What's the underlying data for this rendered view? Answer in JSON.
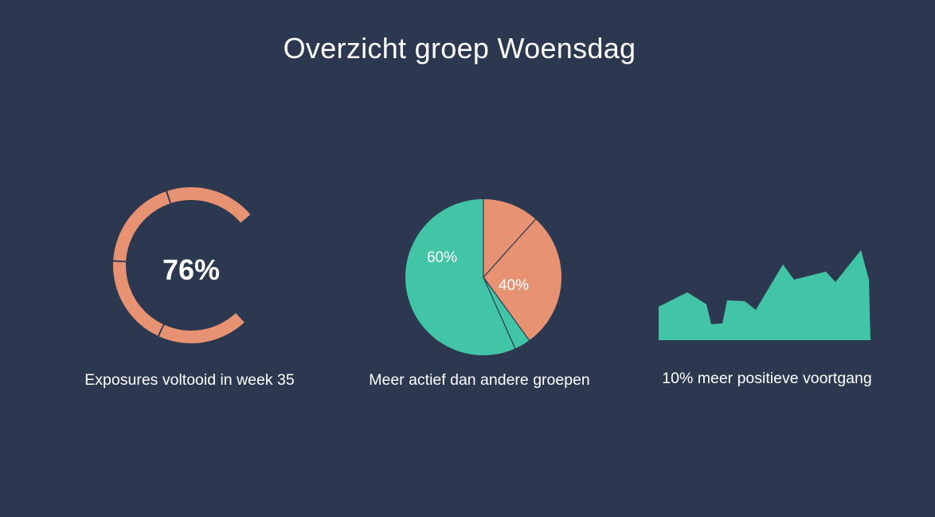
{
  "title": "Overzicht groep Woensdag",
  "colors": {
    "background": "#2c3850",
    "orange": "#e69273",
    "teal": "#42c5a6",
    "divider": "#2c3850"
  },
  "chart_data": [
    {
      "type": "pie",
      "variant": "radial-progress",
      "value": 76,
      "value_label": "76%",
      "caption": "Exposures voltooid in week 35"
    },
    {
      "type": "pie",
      "slices": [
        {
          "label": "60%",
          "value": 60,
          "color": "#42c5a6"
        },
        {
          "label": "40%",
          "value": 40,
          "color": "#e69273"
        }
      ],
      "caption": "Meer actief dan andere groepen"
    },
    {
      "type": "area",
      "x": [
        0,
        1,
        2,
        3,
        4,
        5,
        6,
        7,
        8,
        9,
        10,
        11,
        12,
        13,
        14,
        15
      ],
      "values": [
        42,
        60,
        45,
        20,
        21,
        50,
        49,
        38,
        95,
        76,
        86,
        73,
        113,
        76,
        0,
        0
      ],
      "caption": "10% meer positieve voortgang"
    }
  ]
}
